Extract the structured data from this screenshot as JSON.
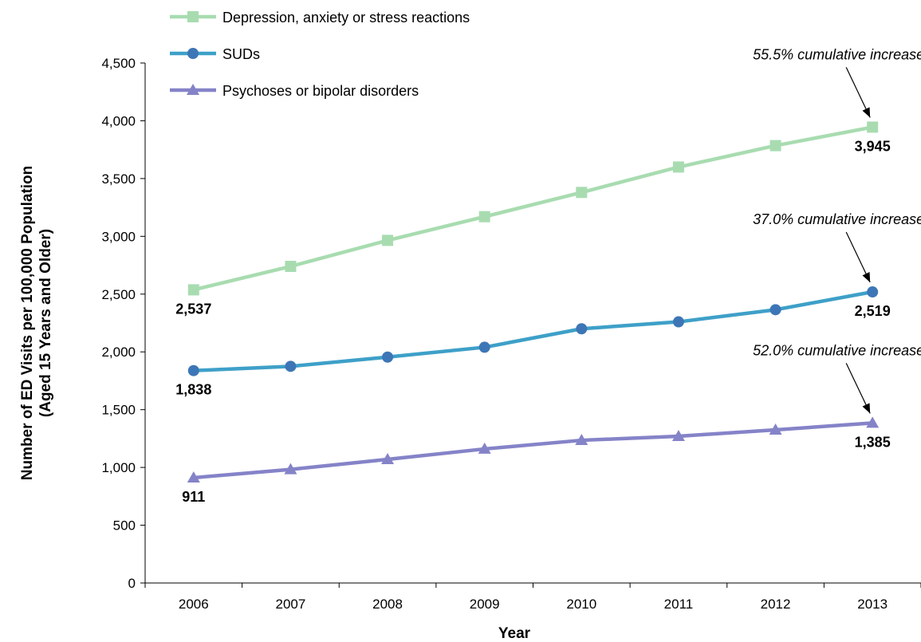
{
  "chart_data": {
    "type": "line",
    "title": "",
    "xlabel": "Year",
    "ylabel_lines": [
      "Number of ED Visits per 100,000 Population",
      "(Aged 15 Years and Older)"
    ],
    "categories": [
      "2006",
      "2007",
      "2008",
      "2009",
      "2010",
      "2011",
      "2012",
      "2013"
    ],
    "ylim": [
      0,
      4500
    ],
    "yticks": [
      0,
      500,
      1000,
      1500,
      2000,
      2500,
      3000,
      3500,
      4000,
      4500
    ],
    "ytick_labels": [
      "0",
      "500",
      "1,000",
      "1,500",
      "2,000",
      "2,500",
      "3,000",
      "3,500",
      "4,000",
      "4,500"
    ],
    "grid": false,
    "legend_position": "top-left",
    "series": [
      {
        "name": "Depression, anxiety or stress reactions",
        "color": "#a8dcb0",
        "marker": "square",
        "values": [
          2537,
          2740,
          2965,
          3170,
          3380,
          3600,
          3785,
          3945
        ],
        "start_label": "2,537",
        "end_label": "3,945",
        "annotation": "55.5% cumulative increase"
      },
      {
        "name": "SUDs",
        "color": "#3ea0c8",
        "marker_color": "#3d76b6",
        "marker": "circle",
        "values": [
          1838,
          1875,
          1955,
          2040,
          2200,
          2260,
          2365,
          2519
        ],
        "start_label": "1,838",
        "end_label": "2,519",
        "annotation": "37.0% cumulative increase"
      },
      {
        "name": "Psychoses or bipolar disorders",
        "color": "#8583c8",
        "marker": "triangle",
        "values": [
          911,
          983,
          1070,
          1160,
          1235,
          1270,
          1325,
          1385
        ],
        "start_label": "911",
        "end_label": "1,385",
        "annotation": "52.0% cumulative increase"
      }
    ]
  }
}
